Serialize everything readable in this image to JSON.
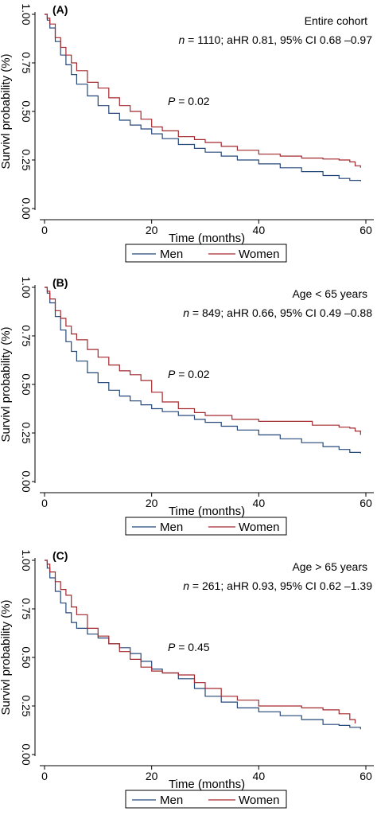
{
  "colors": {
    "men": "#24477a",
    "women": "#a3282d",
    "axis": "#000000"
  },
  "chart_data": [
    {
      "type": "line",
      "panel_label": "(A)",
      "subgroup": "Entire cohort",
      "stats_prefix": "n",
      "stats_rest": " = 1110; aHR 0.81, 95% CI 0.68 –0.97",
      "p_prefix": "P",
      "p_rest": " = 0.02",
      "xlabel": "Time (months)",
      "ylabel": "Survivl probability (%)",
      "xlim": [
        0,
        60
      ],
      "ylim": [
        0,
        1
      ],
      "xticks": [
        "0",
        "20",
        "40",
        "60"
      ],
      "yticks": [
        "0.00",
        "0.25",
        "0.50",
        "0.75",
        "1.00"
      ],
      "legend": [
        "Men",
        "Women"
      ],
      "series": [
        {
          "name": "Men",
          "x": [
            0,
            0.5,
            1,
            2,
            3,
            4,
            5,
            6,
            8,
            10,
            12,
            14,
            16,
            18,
            20,
            22,
            25,
            28,
            30,
            33,
            36,
            40,
            44,
            48,
            52,
            55,
            57,
            59
          ],
          "y": [
            1.0,
            0.97,
            0.93,
            0.86,
            0.79,
            0.74,
            0.69,
            0.64,
            0.58,
            0.53,
            0.49,
            0.455,
            0.43,
            0.41,
            0.385,
            0.36,
            0.33,
            0.31,
            0.29,
            0.27,
            0.25,
            0.23,
            0.21,
            0.19,
            0.17,
            0.155,
            0.145,
            0.14
          ]
        },
        {
          "name": "Women",
          "x": [
            0,
            0.5,
            1,
            2,
            3,
            4,
            5,
            6,
            8,
            10,
            12,
            14,
            16,
            18,
            20,
            22,
            25,
            28,
            30,
            33,
            36,
            40,
            44,
            48,
            52,
            55,
            57,
            58,
            59
          ],
          "y": [
            1.0,
            0.98,
            0.95,
            0.88,
            0.83,
            0.79,
            0.75,
            0.71,
            0.65,
            0.62,
            0.57,
            0.53,
            0.5,
            0.46,
            0.42,
            0.4,
            0.37,
            0.355,
            0.34,
            0.32,
            0.3,
            0.28,
            0.27,
            0.26,
            0.255,
            0.25,
            0.24,
            0.22,
            0.21
          ]
        }
      ]
    },
    {
      "type": "line",
      "panel_label": "(B)",
      "subgroup": "Age < 65 years",
      "stats_prefix": "n",
      "stats_rest": " = 849; aHR 0.66, 95% CI 0.49 –0.88",
      "p_prefix": "P",
      "p_rest": " = 0.02",
      "xlabel": "Time (months)",
      "ylabel": "Survivl probability (%)",
      "xlim": [
        0,
        60
      ],
      "ylim": [
        0,
        1
      ],
      "xticks": [
        "0",
        "20",
        "40",
        "60"
      ],
      "yticks": [
        "0.00",
        "0.25",
        "0.50",
        "0.75",
        "1.00"
      ],
      "legend": [
        "Men",
        "Women"
      ],
      "series": [
        {
          "name": "Men",
          "x": [
            0,
            0.5,
            1,
            2,
            3,
            4,
            5,
            6,
            8,
            10,
            12,
            14,
            16,
            18,
            20,
            22,
            25,
            28,
            30,
            33,
            36,
            40,
            44,
            48,
            52,
            55,
            57,
            59
          ],
          "y": [
            1.0,
            0.97,
            0.92,
            0.85,
            0.78,
            0.72,
            0.67,
            0.62,
            0.56,
            0.51,
            0.47,
            0.44,
            0.415,
            0.395,
            0.375,
            0.36,
            0.34,
            0.32,
            0.305,
            0.285,
            0.265,
            0.24,
            0.22,
            0.2,
            0.18,
            0.165,
            0.15,
            0.145
          ]
        },
        {
          "name": "Women",
          "x": [
            0,
            0.5,
            1,
            2,
            3,
            4,
            5,
            6,
            8,
            10,
            12,
            14,
            16,
            18,
            20,
            22,
            25,
            28,
            30,
            35,
            40,
            45,
            50,
            55,
            57,
            58,
            59
          ],
          "y": [
            1.0,
            0.98,
            0.94,
            0.88,
            0.84,
            0.8,
            0.76,
            0.73,
            0.68,
            0.64,
            0.6,
            0.57,
            0.55,
            0.52,
            0.46,
            0.41,
            0.375,
            0.355,
            0.34,
            0.32,
            0.31,
            0.31,
            0.29,
            0.28,
            0.275,
            0.26,
            0.24
          ]
        }
      ]
    },
    {
      "type": "line",
      "panel_label": "(C)",
      "subgroup": "Age > 65 years",
      "stats_prefix": "n",
      "stats_rest": " = 261; aHR 0.93, 95% CI 0.62 –1.39",
      "p_prefix": "P",
      "p_rest": " = 0.45",
      "xlabel": "Time (months)",
      "ylabel": "Survivl probability (%)",
      "xlim": [
        0,
        60
      ],
      "ylim": [
        0,
        1
      ],
      "xticks": [
        "0",
        "20",
        "40",
        "60"
      ],
      "yticks": [
        "0.00",
        "0.25",
        "0.50",
        "0.75",
        "1.00"
      ],
      "legend": [
        "Men",
        "Women"
      ],
      "series": [
        {
          "name": "Men",
          "x": [
            0,
            0.5,
            1,
            2,
            3,
            4,
            5,
            6,
            8,
            10,
            12,
            14,
            16,
            18,
            20,
            22,
            25,
            28,
            30,
            33,
            36,
            40,
            44,
            48,
            52,
            55,
            57,
            59
          ],
          "y": [
            1.0,
            0.96,
            0.91,
            0.84,
            0.78,
            0.73,
            0.68,
            0.65,
            0.62,
            0.6,
            0.57,
            0.55,
            0.52,
            0.48,
            0.44,
            0.42,
            0.39,
            0.34,
            0.3,
            0.27,
            0.24,
            0.22,
            0.2,
            0.18,
            0.155,
            0.15,
            0.14,
            0.13
          ]
        },
        {
          "name": "Women",
          "x": [
            0,
            0.5,
            1,
            2,
            3,
            4,
            5,
            6,
            8,
            10,
            12,
            14,
            16,
            18,
            20,
            22,
            25,
            28,
            30,
            33,
            36,
            40,
            44,
            48,
            52,
            55,
            57,
            58
          ],
          "y": [
            1.0,
            0.98,
            0.94,
            0.89,
            0.85,
            0.82,
            0.76,
            0.72,
            0.65,
            0.61,
            0.57,
            0.53,
            0.49,
            0.45,
            0.43,
            0.42,
            0.41,
            0.37,
            0.34,
            0.3,
            0.28,
            0.25,
            0.25,
            0.24,
            0.23,
            0.21,
            0.18,
            0.16
          ]
        }
      ]
    }
  ]
}
